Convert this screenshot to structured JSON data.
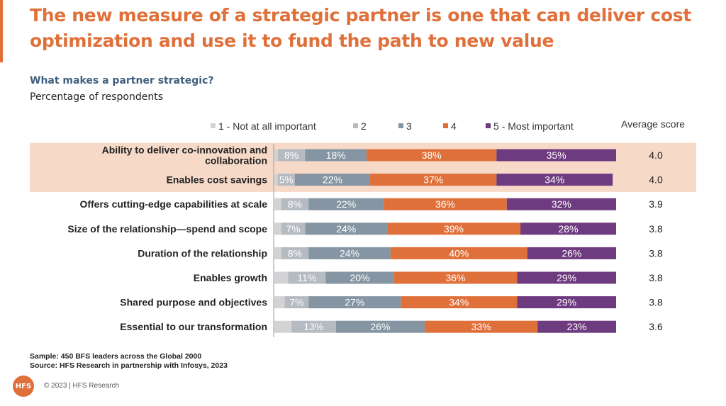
{
  "title": "The new measure of a strategic partner is one that can deliver cost optimization and use it to fund the path to new value",
  "question": "What makes a partner strategic?",
  "subtitle": "Percentage of respondents",
  "average_score_header": "Average score",
  "colors": {
    "accent": "#E0703A",
    "highlight_band": "#F7D9C8",
    "series": [
      "#D3D3D6",
      "#B5BBC1",
      "#8595A3",
      "#E0703A",
      "#6F3B80"
    ]
  },
  "chart_data": {
    "type": "bar",
    "orientation": "horizontal",
    "stacked": true,
    "categories": [
      "Ability to deliver co-innovation and collaboration",
      "Enables cost savings",
      "Offers cutting-edge capabilities at scale",
      "Size of the relationship—spend and scope",
      "Duration of the relationship",
      "Enables growth",
      "Shared purpose and objectives",
      "Essential to our transformation"
    ],
    "category_lines": [
      [
        "Ability to deliver co-innovation and",
        "collaboration"
      ],
      [
        "Enables cost savings"
      ],
      [
        "Offers cutting-edge capabilities at scale"
      ],
      [
        "Size of the relationship—spend and scope"
      ],
      [
        "Duration of the relationship"
      ],
      [
        "Enables growth"
      ],
      [
        "Shared purpose and objectives"
      ],
      [
        "Essential to our transformation"
      ]
    ],
    "series": [
      {
        "name": "1 - Not at all important",
        "values": [
          1,
          1,
          2,
          2,
          2,
          4,
          3,
          5
        ],
        "labels": [
          "",
          "",
          "",
          "",
          "",
          "",
          "",
          ""
        ]
      },
      {
        "name": "2",
        "values": [
          8,
          5,
          8,
          7,
          8,
          11,
          7,
          13
        ],
        "labels": [
          "8%",
          "5%",
          "8%",
          "7%",
          "8%",
          "11%",
          "7%",
          "13%"
        ]
      },
      {
        "name": "3",
        "values": [
          18,
          22,
          22,
          24,
          24,
          20,
          27,
          26
        ],
        "labels": [
          "18%",
          "22%",
          "22%",
          "24%",
          "24%",
          "20%",
          "27%",
          "26%"
        ]
      },
      {
        "name": "4",
        "values": [
          38,
          37,
          36,
          39,
          40,
          36,
          34,
          33
        ],
        "labels": [
          "38%",
          "37%",
          "36%",
          "39%",
          "40%",
          "36%",
          "34%",
          "33%"
        ]
      },
      {
        "name": "5 - Most important",
        "values": [
          35,
          34,
          32,
          28,
          26,
          29,
          29,
          23
        ],
        "labels": [
          "35%",
          "34%",
          "32%",
          "28%",
          "26%",
          "29%",
          "29%",
          "23%"
        ]
      }
    ],
    "average_scores": [
      "4.0",
      "4.0",
      "3.9",
      "3.8",
      "3.8",
      "3.8",
      "3.8",
      "3.6"
    ],
    "highlighted_rows": [
      0,
      1
    ],
    "xlim": [
      0,
      100
    ],
    "legend_position": "top",
    "grid": false
  },
  "footnotes": {
    "sample": "Sample: 450 BFS leaders across the Global 2000",
    "source": "Source: HFS Research in partnership with Infosys, 2023"
  },
  "logo_text": "HFS",
  "copyright": "© 2023 | HFS Research"
}
